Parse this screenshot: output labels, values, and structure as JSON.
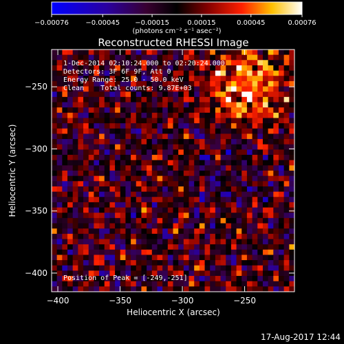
{
  "chart_data": {
    "type": "heatmap",
    "title": "Reconstructed RHESSI Image",
    "xlabel": "Heliocentric X (arcsec)",
    "ylabel": "Heliocentric Y (arcsec)",
    "xlim": [
      -405,
      -210
    ],
    "ylim": [
      -415,
      -220
    ],
    "x_ticks": [
      -400,
      -350,
      -300,
      -250
    ],
    "x_tick_labels": [
      "−400",
      "−350",
      "−300",
      "−250"
    ],
    "y_ticks": [
      -250,
      -300,
      -350,
      -400
    ],
    "y_tick_labels": [
      "−250",
      "−300",
      "−350",
      "−400"
    ],
    "colorbar": {
      "range": [
        -0.00076,
        0.00076
      ],
      "tick_values": [
        -0.00076,
        -0.00045,
        -0.00015,
        0.00015,
        0.00045,
        0.00076
      ],
      "tick_labels": [
        "−0.00076",
        "−0.00045",
        "−0.00015",
        "0.00015",
        "0.00045",
        "0.00076"
      ],
      "unit_label": "(photons cm⁻² s⁻¹ asec⁻²)"
    },
    "annotations": [
      "1-Dec-2014 02:10:24.000 to 02:20:24.000",
      "Detectors: 3F 6F 9F, Att 0",
      "Energy Range: 25.0 - 50.0 keV",
      "Clean    Total counts: 9.87E+03"
    ],
    "peak_label": "Position of Peak = [-249,-251]",
    "peak": [
      -249,
      -251
    ],
    "grid": false
  },
  "footer": {
    "timestamp": "17-Aug-2017 12:44"
  }
}
